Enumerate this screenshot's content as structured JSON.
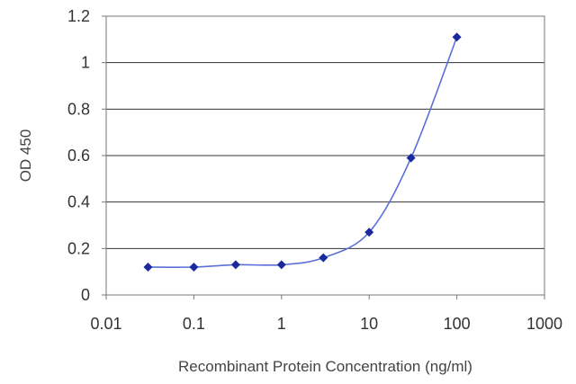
{
  "chart_data": {
    "type": "scatter",
    "title": "",
    "xlabel": "Recombinant Protein Concentration (ng/ml)",
    "ylabel": "OD 450",
    "x_scale": "log",
    "xlim": [
      0.01,
      1000
    ],
    "ylim": [
      0,
      1.2
    ],
    "x_ticks": [
      "0.01",
      "0.1",
      "1",
      "10",
      "100",
      "1000"
    ],
    "y_ticks": [
      "0",
      "0.2",
      "0.4",
      "0.6",
      "0.8",
      "1",
      "1.2"
    ],
    "grid": "horizontal",
    "legend": "none",
    "series": [
      {
        "x": [
          0.03,
          0.1,
          0.3,
          1,
          3,
          10,
          30,
          100
        ],
        "y": [
          0.12,
          0.12,
          0.13,
          0.13,
          0.16,
          0.27,
          0.59,
          1.11
        ]
      }
    ],
    "colors": {
      "line": "#5a6fd8",
      "marker": "#1a2a9e",
      "grid": "#333333",
      "axis": "#777777"
    }
  }
}
